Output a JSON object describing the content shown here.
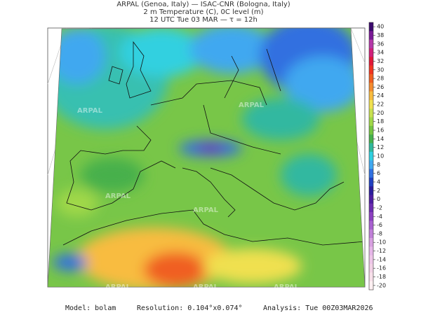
{
  "header": {
    "lines": [
      "ARPAL (Genoa, Italy)  —  ISAC-CNR (Bologna, Italy)",
      "2 m Temperature (C), 0C level (m)",
      "12 UTC Tue 03 MAR  —  τ = 12h"
    ]
  },
  "colorbar": {
    "ticks": [
      40,
      38,
      36,
      34,
      32,
      30,
      28,
      26,
      24,
      22,
      20,
      18,
      16,
      14,
      12,
      10,
      8,
      6,
      4,
      2,
      0,
      -2,
      -4,
      -6,
      -8,
      -10,
      -12,
      -14,
      -16,
      -18,
      -20
    ],
    "colors": [
      "#3c0a6e",
      "#7a1a96",
      "#b438a8",
      "#d0207a",
      "#e01838",
      "#f03420",
      "#f05e20",
      "#f48c30",
      "#f8bc40",
      "#f0e050",
      "#c8e050",
      "#a0d848",
      "#74c442",
      "#46b04c",
      "#30b89c",
      "#30d0e0",
      "#40a8f0",
      "#3070e0",
      "#2040c0",
      "#2a1c9c",
      "#4c1ca0",
      "#6c2cb0",
      "#8c40c0",
      "#a860d0",
      "#c080d8",
      "#d8a0e0",
      "#e6b6e8",
      "#eec6e8",
      "#f2d2e6",
      "#f8e0ea",
      "#fff0f2"
    ]
  },
  "watermark": "ARPAL",
  "footer": {
    "model": "Model: bolam",
    "resolution": "Resolution: 0.104°x0.074°",
    "analysis": "Analysis: Tue 00Z03MAR2026"
  }
}
